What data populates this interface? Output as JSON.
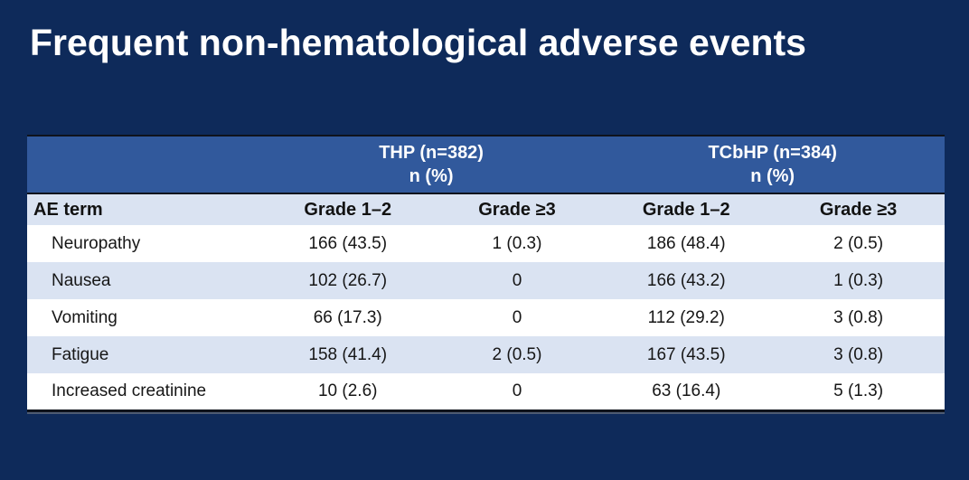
{
  "slide": {
    "title": "Frequent non-hematological adverse events",
    "background_color": "#0e2a5a"
  },
  "table": {
    "group_headers": [
      {
        "line1": "THP (n=382)",
        "line2": "n (%)"
      },
      {
        "line1": "TCbHP (n=384)",
        "line2": "n (%)"
      }
    ],
    "column_headers": [
      "AE term",
      "Grade 1–2",
      "Grade ≥3",
      "Grade 1–2",
      "Grade ≥3"
    ],
    "rows": [
      {
        "term": "Neuropathy",
        "values": [
          "166 (43.5)",
          "1 (0.3)",
          "186 (48.4)",
          "2 (0.5)"
        ]
      },
      {
        "term": "Nausea",
        "values": [
          "102 (26.7)",
          "0",
          "166 (43.2)",
          "1 (0.3)"
        ]
      },
      {
        "term": "Vomiting",
        "values": [
          "66 (17.3)",
          "0",
          "112 (29.2)",
          "3 (0.8)"
        ]
      },
      {
        "term": "Fatigue",
        "values": [
          "158 (41.4)",
          "2 (0.5)",
          "167 (43.5)",
          "3 (0.8)"
        ]
      },
      {
        "term": "Increased creatinine",
        "values": [
          "10 (2.6)",
          "0",
          "63 (16.4)",
          "5 (1.3)"
        ]
      }
    ],
    "colors": {
      "group_header_bg": "#31599c",
      "group_header_text": "#ffffff",
      "subheader_bg": "#dae3f2",
      "alt_row_bg": "#dae3f2",
      "row_bg": "#ffffff",
      "border": "#0f131c",
      "body_text": "#161616"
    }
  }
}
